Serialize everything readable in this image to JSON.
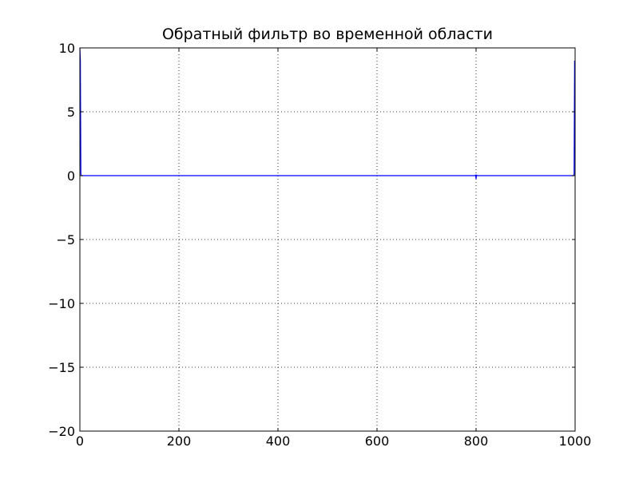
{
  "chart_data": {
    "type": "line",
    "title": "Обратный фильтр во временной области",
    "xlabel": "",
    "ylabel": "",
    "xlim": [
      0,
      1000
    ],
    "ylim": [
      -20,
      10
    ],
    "x_ticks": [
      0,
      200,
      400,
      600,
      800,
      1000
    ],
    "y_ticks": [
      -20,
      -15,
      -10,
      -5,
      0,
      5,
      10
    ],
    "x_tick_labels": [
      "0",
      "200",
      "400",
      "600",
      "800",
      "1000"
    ],
    "y_tick_labels": [
      "−20",
      "−15",
      "−10",
      "−5",
      "0",
      "5",
      "10"
    ],
    "grid": true,
    "series": [
      {
        "color": "#0000ff",
        "x": [
          0,
          1,
          2,
          3,
          4,
          5,
          100,
          200,
          300,
          400,
          500,
          600,
          700,
          798,
          799,
          800,
          801,
          802,
          900,
          995,
          996,
          997,
          998,
          999
        ],
        "y": [
          10,
          9,
          0.1,
          0,
          0,
          0,
          0,
          0,
          0,
          0,
          0,
          0,
          0,
          0,
          0.05,
          -0.25,
          0.05,
          0,
          0,
          0,
          0,
          0,
          0.1,
          9
        ]
      }
    ]
  }
}
